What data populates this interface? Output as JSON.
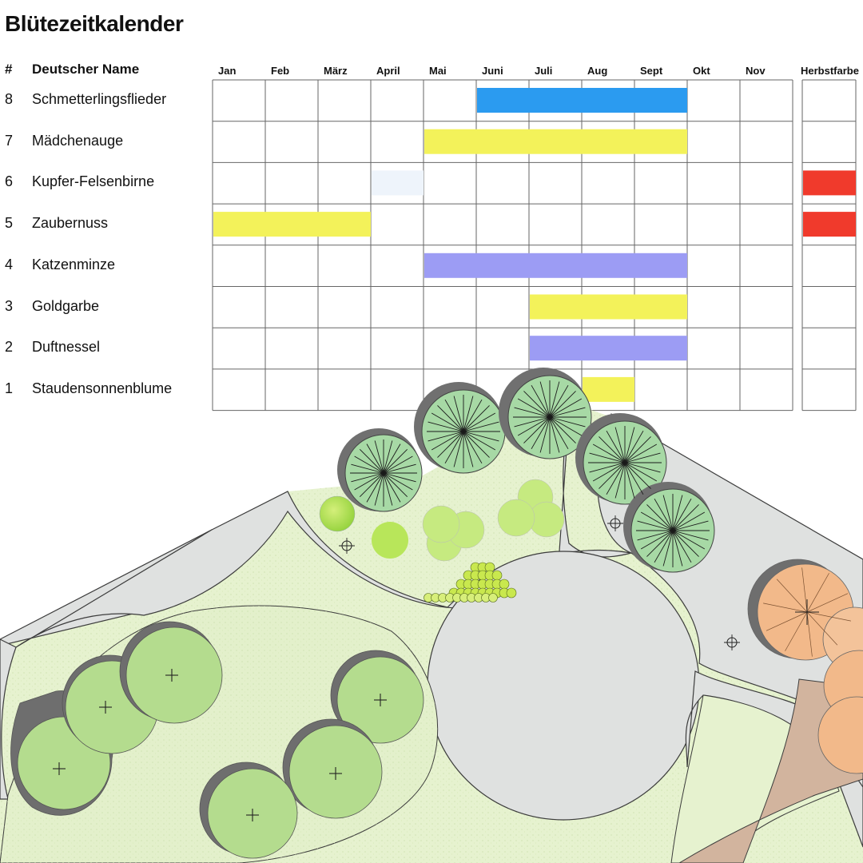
{
  "title": "Blütezeitkalender",
  "headers": {
    "number": "#",
    "name": "Deutscher Name",
    "autumn": "Herbstfarbe"
  },
  "months": [
    "Jan",
    "Feb",
    "März",
    "April",
    "Mai",
    "Juni",
    "Juli",
    "Aug",
    "Sept",
    "Okt",
    "Nov"
  ],
  "chart_data": {
    "type": "gantt",
    "title": "Blütezeitkalender",
    "categories": [
      "Jan",
      "Feb",
      "März",
      "April",
      "Mai",
      "Juni",
      "Juli",
      "Aug",
      "Sept",
      "Okt",
      "Nov"
    ],
    "rows": [
      {
        "num": "8",
        "name": "Schmetterlingsflieder",
        "bloom_start": "Juni",
        "bloom_end": "Sept",
        "bloom_color": "#2b9bf0",
        "autumn_color": null
      },
      {
        "num": "7",
        "name": "Mädchenauge",
        "bloom_start": "Mai",
        "bloom_end": "Sept",
        "bloom_color": "#f3f25a",
        "autumn_color": null
      },
      {
        "num": "6",
        "name": "Kupfer-Felsenbirne",
        "bloom_start": "April",
        "bloom_end": "April",
        "bloom_color": "#eef4fb",
        "autumn_color": "#f03a2c"
      },
      {
        "num": "5",
        "name": "Zaubernuss",
        "bloom_start": "Jan",
        "bloom_end": "März",
        "bloom_color": "#f3f25a",
        "autumn_color": "#f03a2c"
      },
      {
        "num": "4",
        "name": "Katzenminze",
        "bloom_start": "Mai",
        "bloom_end": "Sept",
        "bloom_color": "#9c9cf4",
        "autumn_color": null
      },
      {
        "num": "3",
        "name": "Goldgarbe",
        "bloom_start": "Juli",
        "bloom_end": "Sept",
        "bloom_color": "#f3f25a",
        "autumn_color": null
      },
      {
        "num": "2",
        "name": "Duftnessel",
        "bloom_start": "Juli",
        "bloom_end": "Sept",
        "bloom_color": "#9c9cf4",
        "autumn_color": null
      },
      {
        "num": "1",
        "name": "Staudensonnenblume",
        "bloom_start": "Aug",
        "bloom_end": "Aug",
        "bloom_color": "#f3f25a",
        "autumn_color": null
      }
    ]
  },
  "colors": {
    "grid": "#666666",
    "lawn": "#e6f2cf",
    "path": "#dfe1e0",
    "tree": "#a9d796",
    "shadow": "#707070",
    "autumn_tree": "#f2b98a",
    "soil": "#d2b49e"
  }
}
